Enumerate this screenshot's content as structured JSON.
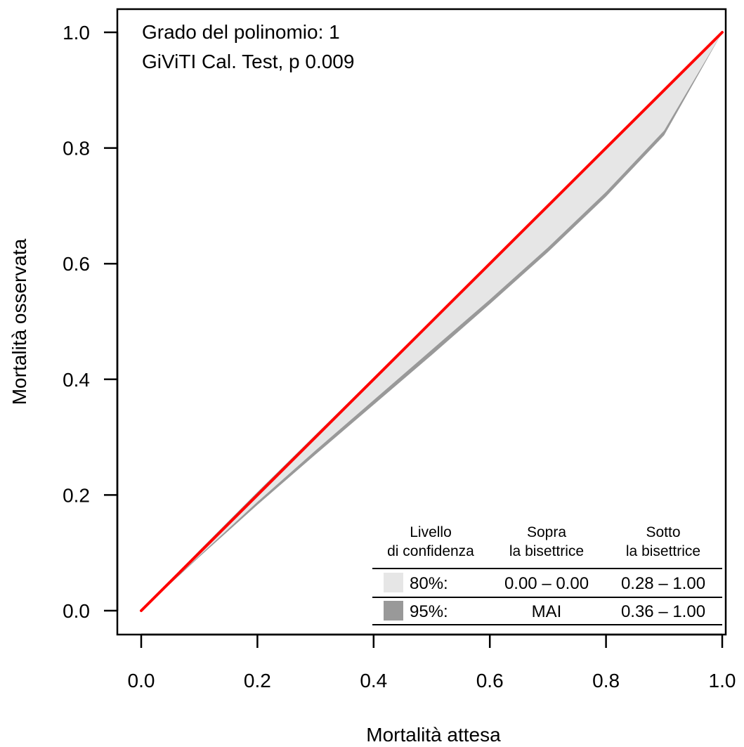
{
  "chart_data": {
    "type": "line",
    "title": "",
    "xlabel": "Mortalità attesa",
    "ylabel": "Mortalità osservata",
    "xlim": [
      0,
      1
    ],
    "ylim": [
      0,
      1
    ],
    "x_ticks": [
      "0.0",
      "0.2",
      "0.4",
      "0.6",
      "0.8",
      "1.0"
    ],
    "y_ticks": [
      "0.0",
      "0.2",
      "0.4",
      "0.6",
      "0.8",
      "1.0"
    ],
    "annotations": [
      "Grado del polinomio: 1",
      "GiViTI Cal. Test, p 0.009"
    ],
    "colors": {
      "curve": "#ff0000",
      "band80": "#e6e6e6",
      "band95": "#999999",
      "band95_edge": "#999999"
    },
    "curve": {
      "x": [
        0.0,
        0.1,
        0.2,
        0.3,
        0.4,
        0.5,
        0.6,
        0.7,
        0.8,
        0.9,
        1.0
      ],
      "y": [
        0.0,
        0.1,
        0.2,
        0.3,
        0.4,
        0.5,
        0.6,
        0.7,
        0.8,
        0.9,
        1.0
      ]
    },
    "band_95": {
      "x": [
        0.0,
        0.1,
        0.2,
        0.3,
        0.4,
        0.5,
        0.6,
        0.7,
        0.8,
        0.9,
        1.0
      ],
      "lower": [
        0.0,
        0.093,
        0.183,
        0.27,
        0.356,
        0.442,
        0.53,
        0.62,
        0.716,
        0.822,
        1.0
      ],
      "upper": [
        0.0,
        0.104,
        0.205,
        0.304,
        0.403,
        0.502,
        0.601,
        0.701,
        0.8,
        0.899,
        1.0
      ]
    },
    "band_80": {
      "x": [
        0.0,
        0.1,
        0.2,
        0.3,
        0.4,
        0.5,
        0.6,
        0.7,
        0.8,
        0.9,
        1.0
      ],
      "lower": [
        0.0,
        0.095,
        0.188,
        0.277,
        0.364,
        0.451,
        0.538,
        0.628,
        0.724,
        0.83,
        1.0
      ],
      "upper": [
        0.0,
        0.102,
        0.202,
        0.301,
        0.401,
        0.501,
        0.601,
        0.701,
        0.8,
        0.899,
        1.0
      ]
    },
    "legend_table": {
      "headers": [
        [
          "Livello",
          "di confidenza"
        ],
        [
          "Sopra",
          "la bisettrice"
        ],
        [
          "Sotto",
          "la bisettrice"
        ]
      ],
      "rows": [
        {
          "level": "80%:",
          "above": "0.00 – 0.00",
          "below": "0.28 – 1.00",
          "swatch": "#e6e6e6"
        },
        {
          "level": "95%:",
          "above": "MAI",
          "below": "0.36 – 1.00",
          "swatch": "#999999"
        }
      ]
    }
  }
}
